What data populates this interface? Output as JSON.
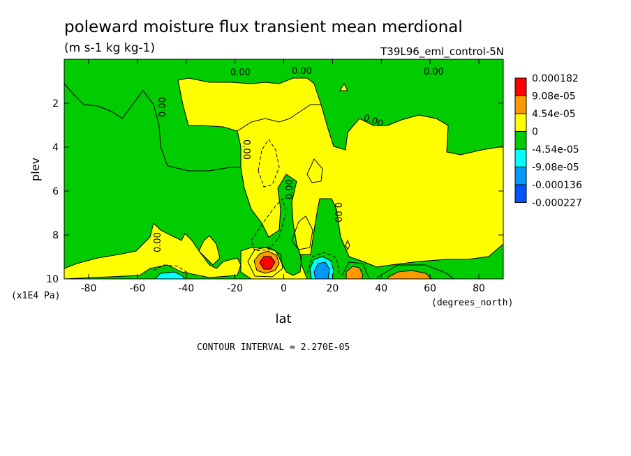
{
  "chart_data": {
    "type": "heatmap",
    "title": "poleward moisture flux transient mean merdional",
    "units": "(m s-1 kg kg-1)",
    "dataset": "T39L96_eml_control-5N",
    "xlabel": "lat",
    "x_units": "(degrees_north)",
    "ylabel": "plev",
    "y_units": "(x1E4 Pa)",
    "xlim": [
      -90,
      90
    ],
    "ylim": [
      10,
      0
    ],
    "x_ticks": [
      -80,
      -60,
      -40,
      -20,
      0,
      20,
      40,
      60,
      80
    ],
    "y_ticks": [
      2,
      4,
      6,
      8,
      10
    ],
    "x_tick_labels": [
      "-80",
      "-60",
      "-40",
      "-20",
      "0",
      "20",
      "40",
      "60",
      "80"
    ],
    "y_tick_labels": [
      "2",
      "4",
      "6",
      "8",
      "10"
    ],
    "contour_interval_text": "CONTOUR INTERVAL = 2.270E-05",
    "contour_label": "0.00",
    "legend": {
      "placement": "right",
      "colors": [
        "#ff0000",
        "#ff9900",
        "#ffff00",
        "#00cc00",
        "#00ffff",
        "#0099ff",
        "#0055ff"
      ],
      "labels": [
        "0.000182",
        "9.08e-05",
        "4.54e-05",
        "0",
        "-4.54e-05",
        "-9.08e-05",
        "-0.000136",
        "-0.000227"
      ]
    },
    "features": [
      {
        "type": "max",
        "lat": -7,
        "plev": 9.3,
        "value": 0.000182
      },
      {
        "type": "min",
        "lat": 16,
        "plev": 9.6,
        "value": -0.000136
      },
      {
        "type": "max",
        "lat": 28,
        "plev": 9.8,
        "value": 9.08e-05
      },
      {
        "type": "max",
        "lat": 52,
        "plev": 9.9,
        "value": 9.08e-05
      },
      {
        "type": "min",
        "lat": -47,
        "plev": 9.9,
        "value": -4.54e-05
      }
    ]
  },
  "colors": {
    "positive": "#ffff00",
    "negative": "#00cc00"
  }
}
